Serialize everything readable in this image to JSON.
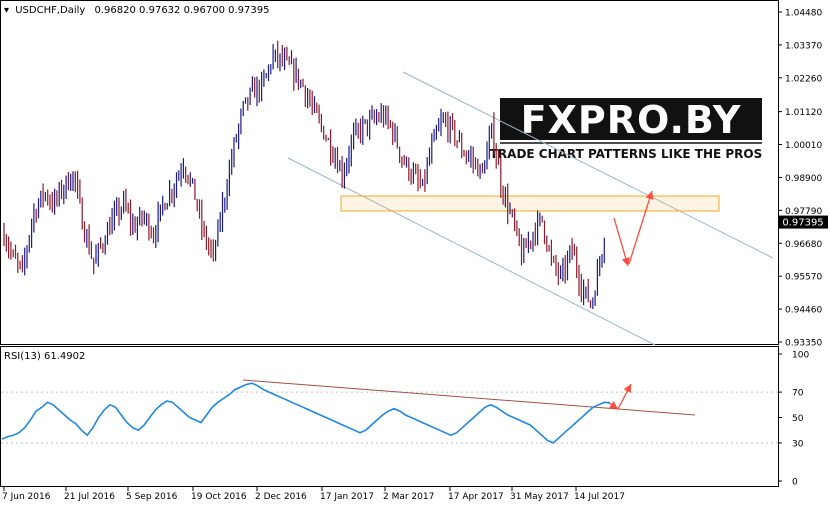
{
  "header": {
    "title": "USDCHF,Daily",
    "ohlc": "0.96820 0.97632 0.96700 0.97395"
  },
  "rsi_header": "RSI(13) 61.4902",
  "logo": {
    "text": "FXPRO.BY",
    "tagline": "TRADE CHART PATTERNS LIKE THE PROS"
  },
  "colors": {
    "bull_bar": "#1b1b8c",
    "bear_bar": "#8b1a2a",
    "rsi_line": "#1e88e5",
    "channel_line": "#9cb6c6",
    "resistance_zone": "#f5a623",
    "trendline": "#a0524a",
    "arrow": "#ff4a3d",
    "price_tag_bg": "#000000",
    "price_tag_text": "#ffffff"
  },
  "chart_data": [
    {
      "type": "candlestick",
      "title": "USDCHF,Daily",
      "ylim": [
        0.9335,
        1.0448
      ],
      "y_ticks": [
        "1.04480",
        "1.03370",
        "1.02260",
        "1.01120",
        "1.00010",
        "0.98900",
        "0.97790",
        "0.96680",
        "0.95570",
        "0.94460",
        "0.93350"
      ],
      "last_price_label": "0.97395",
      "x_ticks": [
        "7 Jun 2016",
        "21 Jul 2016",
        "5 Sep 2016",
        "19 Oct 2016",
        "2 Dec 2016",
        "17 Jan 2017",
        "2 Mar 2017",
        "17 Apr 2017",
        "31 May 2017",
        "14 Jul 2017"
      ],
      "price_path": [
        [
          "2016-06-07",
          0.97
        ],
        [
          "2016-06-13",
          0.962
        ],
        [
          "2016-06-20",
          0.957
        ],
        [
          "2016-06-27",
          0.976
        ],
        [
          "2016-07-05",
          0.984
        ],
        [
          "2016-07-12",
          0.98
        ],
        [
          "2016-07-19",
          0.986
        ],
        [
          "2016-07-26",
          0.99
        ],
        [
          "2016-08-02",
          0.972
        ],
        [
          "2016-08-09",
          0.96
        ],
        [
          "2016-08-16",
          0.968
        ],
        [
          "2016-08-23",
          0.975
        ],
        [
          "2016-08-30",
          0.98
        ],
        [
          "2016-09-06",
          0.972
        ],
        [
          "2016-09-13",
          0.976
        ],
        [
          "2016-09-20",
          0.97
        ],
        [
          "2016-09-27",
          0.98
        ],
        [
          "2016-10-04",
          0.986
        ],
        [
          "2016-10-11",
          0.994
        ],
        [
          "2016-10-18",
          0.985
        ],
        [
          "2016-10-25",
          0.97
        ],
        [
          "2016-11-01",
          0.962
        ],
        [
          "2016-11-08",
          0.98
        ],
        [
          "2016-11-15",
          0.998
        ],
        [
          "2016-11-22",
          1.012
        ],
        [
          "2016-11-29",
          1.018
        ],
        [
          "2016-12-06",
          1.02
        ],
        [
          "2016-12-13",
          1.03
        ],
        [
          "2016-12-20",
          1.028
        ],
        [
          "2016-12-27",
          1.025
        ],
        [
          "2017-01-03",
          1.02
        ],
        [
          "2017-01-10",
          1.012
        ],
        [
          "2017-01-17",
          1.005
        ],
        [
          "2017-01-24",
          0.998
        ],
        [
          "2017-01-31",
          0.99
        ],
        [
          "2017-02-07",
          1.002
        ],
        [
          "2017-02-14",
          1.006
        ],
        [
          "2017-02-21",
          1.008
        ],
        [
          "2017-02-28",
          1.01
        ],
        [
          "2017-03-07",
          1.005
        ],
        [
          "2017-03-14",
          0.995
        ],
        [
          "2017-03-21",
          0.99
        ],
        [
          "2017-03-28",
          0.985
        ],
        [
          "2017-04-04",
          1.0
        ],
        [
          "2017-04-11",
          1.008
        ],
        [
          "2017-04-18",
          1.005
        ],
        [
          "2017-04-25",
          0.998
        ],
        [
          "2017-05-02",
          0.995
        ],
        [
          "2017-05-09",
          0.99
        ],
        [
          "2017-05-16",
          1.005
        ],
        [
          "2017-05-23",
          0.985
        ],
        [
          "2017-05-30",
          0.975
        ],
        [
          "2017-06-06",
          0.962
        ],
        [
          "2017-06-13",
          0.97
        ],
        [
          "2017-06-20",
          0.975
        ],
        [
          "2017-06-27",
          0.96
        ],
        [
          "2017-07-04",
          0.955
        ],
        [
          "2017-07-11",
          0.965
        ],
        [
          "2017-07-18",
          0.952
        ],
        [
          "2017-07-25",
          0.946
        ],
        [
          "2017-08-01",
          0.964
        ],
        [
          "2017-08-04",
          0.974
        ]
      ]
    },
    {
      "type": "line",
      "title": "RSI(13) 61.4902",
      "ylim": [
        0,
        100
      ],
      "y_ticks": [
        "100",
        "70",
        "50",
        "30",
        "0"
      ],
      "series": [
        {
          "values": [
            33,
            35,
            36,
            38,
            42,
            48,
            55,
            58,
            62,
            60,
            56,
            52,
            48,
            45,
            40,
            36,
            42,
            50,
            56,
            60,
            58,
            52,
            46,
            42,
            40,
            44,
            50,
            56,
            60,
            63,
            62,
            58,
            54,
            50,
            48,
            46,
            52,
            58,
            62,
            65,
            68,
            72,
            74,
            76,
            77,
            75,
            72,
            70,
            68,
            66,
            64,
            62,
            60,
            58,
            56,
            54,
            52,
            50,
            48,
            46,
            44,
            42,
            40,
            38,
            40,
            44,
            48,
            52,
            55,
            57,
            55,
            52,
            50,
            48,
            46,
            44,
            42,
            40,
            38,
            36,
            38,
            42,
            46,
            50,
            54,
            58,
            60,
            58,
            55,
            52,
            50,
            48,
            46,
            44,
            40,
            36,
            32,
            30,
            34,
            38,
            42,
            46,
            50,
            54,
            58,
            60,
            62,
            61.49
          ]
        }
      ]
    }
  ]
}
